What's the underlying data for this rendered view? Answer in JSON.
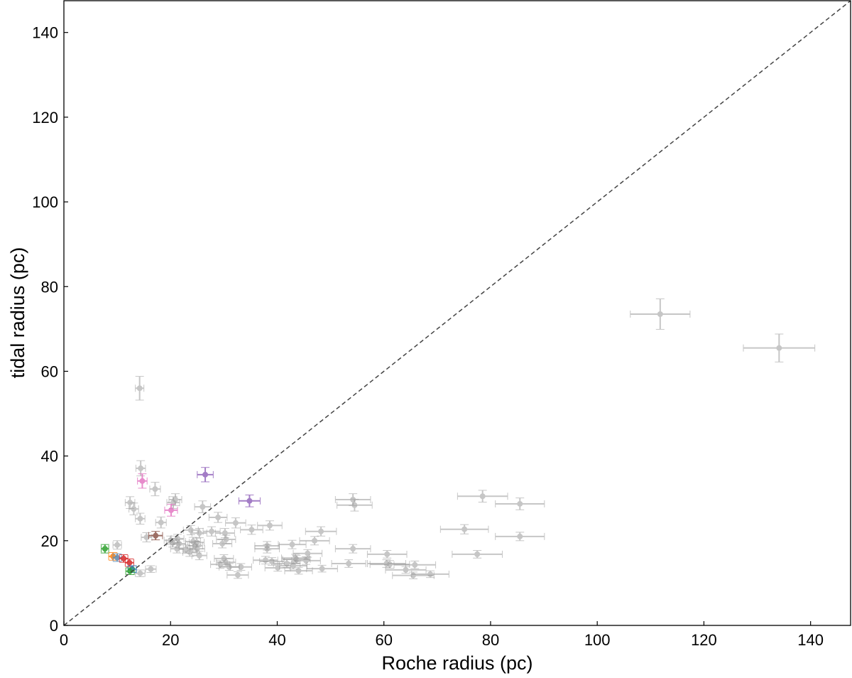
{
  "chart_data": {
    "type": "scatter",
    "xlabel": "Roche radius (pc)",
    "ylabel": "tidal radius (pc)",
    "xlim": [
      0,
      147.5
    ],
    "ylim": [
      0,
      147.5
    ],
    "xticks": [
      0,
      20,
      40,
      60,
      80,
      100,
      120,
      140
    ],
    "yticks": [
      0,
      20,
      40,
      60,
      80,
      100,
      120,
      140
    ],
    "grid": false,
    "reference_line": {
      "type": "y=x",
      "style": "dashed",
      "color": "#444444"
    },
    "colors": {
      "gray": "#999999",
      "C0": "#1f77b4",
      "C1": "#ff7f0e",
      "C2": "#2ca02c",
      "C3": "#d62728",
      "C4": "#9467bd",
      "C5": "#8c564b",
      "C6": "#e377c2",
      "steel": "#5b8db8"
    },
    "points_format": [
      "x",
      "y",
      "xerr",
      "yerr",
      "color"
    ],
    "points": [
      [
        14.2,
        56.0,
        0.8,
        2.8,
        "gray"
      ],
      [
        14.4,
        37.1,
        0.9,
        1.8,
        "gray"
      ],
      [
        17.1,
        32.2,
        1.0,
        1.6,
        "gray"
      ],
      [
        12.4,
        29.0,
        0.9,
        1.4,
        "gray"
      ],
      [
        13.1,
        27.5,
        0.9,
        1.4,
        "gray"
      ],
      [
        14.3,
        25.2,
        0.9,
        1.3,
        "gray"
      ],
      [
        18.2,
        24.3,
        1.0,
        1.3,
        "gray"
      ],
      [
        20.9,
        29.7,
        1.2,
        1.4,
        "gray"
      ],
      [
        20.5,
        29.0,
        1.2,
        1.4,
        "gray"
      ],
      [
        26.0,
        28.0,
        1.5,
        1.4,
        "gray"
      ],
      [
        15.5,
        20.8,
        1.0,
        1.1,
        "gray"
      ],
      [
        10.0,
        19.0,
        0.8,
        1.0,
        "gray"
      ],
      [
        14.3,
        12.3,
        0.9,
        0.8,
        "gray"
      ],
      [
        16.3,
        13.3,
        1.0,
        0.8,
        "gray"
      ],
      [
        20.0,
        20.1,
        1.2,
        1.0,
        "gray"
      ],
      [
        20.4,
        19.5,
        1.2,
        1.0,
        "gray"
      ],
      [
        21.3,
        20.5,
        1.2,
        1.0,
        "gray"
      ],
      [
        21.6,
        19.3,
        1.2,
        1.0,
        "gray"
      ],
      [
        21.2,
        18.1,
        1.2,
        1.0,
        "gray"
      ],
      [
        22.9,
        18.0,
        1.3,
        1.0,
        "gray"
      ],
      [
        23.6,
        17.3,
        1.3,
        1.0,
        "gray"
      ],
      [
        23.8,
        22.5,
        1.4,
        1.1,
        "gray"
      ],
      [
        25.4,
        21.8,
        1.4,
        1.1,
        "gray"
      ],
      [
        24.2,
        19.8,
        1.4,
        1.0,
        "gray"
      ],
      [
        24.9,
        19.6,
        1.4,
        1.0,
        "gray"
      ],
      [
        24.6,
        18.8,
        1.4,
        1.0,
        "gray"
      ],
      [
        25.0,
        18.1,
        1.4,
        1.0,
        "gray"
      ],
      [
        25.4,
        16.5,
        1.4,
        1.0,
        "gray"
      ],
      [
        27.7,
        22.2,
        1.6,
        1.1,
        "gray"
      ],
      [
        28.9,
        25.5,
        1.7,
        1.2,
        "gray"
      ],
      [
        32.2,
        24.2,
        1.9,
        1.2,
        "gray"
      ],
      [
        35.2,
        22.6,
        2.1,
        1.1,
        "gray"
      ],
      [
        38.6,
        23.6,
        2.3,
        1.1,
        "gray"
      ],
      [
        30.2,
        21.8,
        1.8,
        1.1,
        "gray"
      ],
      [
        30.4,
        20.3,
        1.8,
        1.0,
        "gray"
      ],
      [
        29.7,
        19.3,
        1.8,
        1.0,
        "gray"
      ],
      [
        38.1,
        18.8,
        2.3,
        1.0,
        "gray"
      ],
      [
        38.1,
        18.1,
        2.3,
        1.0,
        "gray"
      ],
      [
        42.8,
        19.1,
        2.6,
        1.0,
        "gray"
      ],
      [
        47.0,
        20.0,
        2.8,
        1.0,
        "gray"
      ],
      [
        48.2,
        22.2,
        2.9,
        1.1,
        "gray"
      ],
      [
        54.2,
        29.7,
        3.3,
        1.4,
        "gray"
      ],
      [
        54.5,
        28.4,
        3.3,
        1.4,
        "gray"
      ],
      [
        54.2,
        18.1,
        3.3,
        1.0,
        "gray"
      ],
      [
        60.6,
        16.8,
        3.7,
        0.9,
        "gray"
      ],
      [
        75.1,
        22.7,
        4.5,
        1.1,
        "gray"
      ],
      [
        77.5,
        16.8,
        4.7,
        0.9,
        "gray"
      ],
      [
        78.5,
        30.5,
        4.7,
        1.4,
        "gray"
      ],
      [
        85.5,
        28.7,
        4.6,
        1.4,
        "gray"
      ],
      [
        85.5,
        21.0,
        4.6,
        1.0,
        "gray"
      ],
      [
        30.0,
        15.8,
        1.8,
        0.9,
        "gray"
      ],
      [
        30.4,
        14.9,
        1.8,
        0.9,
        "gray"
      ],
      [
        29.3,
        14.4,
        1.8,
        0.9,
        "gray"
      ],
      [
        31.0,
        13.8,
        1.9,
        0.8,
        "gray"
      ],
      [
        33.2,
        13.8,
        2.0,
        0.8,
        "gray"
      ],
      [
        32.6,
        11.9,
        2.0,
        0.8,
        "gray"
      ],
      [
        37.8,
        15.4,
        2.3,
        0.9,
        "gray"
      ],
      [
        39.0,
        15.1,
        2.3,
        0.9,
        "gray"
      ],
      [
        40.1,
        13.6,
        2.4,
        0.8,
        "gray"
      ],
      [
        41.8,
        14.6,
        2.5,
        0.9,
        "gray"
      ],
      [
        43.0,
        14.1,
        2.6,
        0.8,
        "gray"
      ],
      [
        44.0,
        12.9,
        2.6,
        0.8,
        "gray"
      ],
      [
        43.4,
        15.9,
        2.6,
        0.9,
        "gray"
      ],
      [
        43.6,
        15.6,
        2.6,
        0.9,
        "gray"
      ],
      [
        45.4,
        15.3,
        2.7,
        0.9,
        "gray"
      ],
      [
        45.7,
        17.0,
        2.7,
        0.9,
        "gray"
      ],
      [
        48.4,
        13.4,
        2.9,
        0.8,
        "gray"
      ],
      [
        53.4,
        14.6,
        3.2,
        0.9,
        "gray"
      ],
      [
        60.5,
        14.6,
        3.6,
        0.9,
        "gray"
      ],
      [
        61.1,
        14.4,
        3.7,
        0.9,
        "gray"
      ],
      [
        65.8,
        14.3,
        3.9,
        0.9,
        "gray"
      ],
      [
        64.1,
        13.1,
        3.8,
        0.8,
        "gray"
      ],
      [
        65.5,
        11.8,
        3.9,
        0.8,
        "gray"
      ],
      [
        68.7,
        12.1,
        3.5,
        0.8,
        "gray"
      ],
      [
        111.8,
        73.5,
        5.6,
        3.6,
        "gray"
      ],
      [
        134.1,
        65.5,
        6.7,
        3.3,
        "gray"
      ],
      [
        7.7,
        18.1,
        0.7,
        1.0,
        "C2"
      ],
      [
        9.2,
        16.3,
        0.8,
        0.9,
        "C1"
      ],
      [
        10.0,
        16.0,
        0.8,
        0.9,
        "steel"
      ],
      [
        11.2,
        15.8,
        0.8,
        0.9,
        "C3"
      ],
      [
        12.3,
        14.8,
        0.8,
        0.9,
        "C3"
      ],
      [
        12.8,
        13.3,
        0.8,
        0.8,
        "C0"
      ],
      [
        12.4,
        12.8,
        0.8,
        0.8,
        "C2"
      ],
      [
        14.7,
        34.1,
        0.9,
        1.7,
        "C6"
      ],
      [
        20.1,
        27.2,
        1.2,
        1.4,
        "C6"
      ],
      [
        17.2,
        21.2,
        1.3,
        1.0,
        "C5"
      ],
      [
        26.5,
        35.6,
        1.5,
        1.7,
        "C4"
      ],
      [
        34.8,
        29.4,
        2.0,
        1.4,
        "C4"
      ]
    ]
  }
}
